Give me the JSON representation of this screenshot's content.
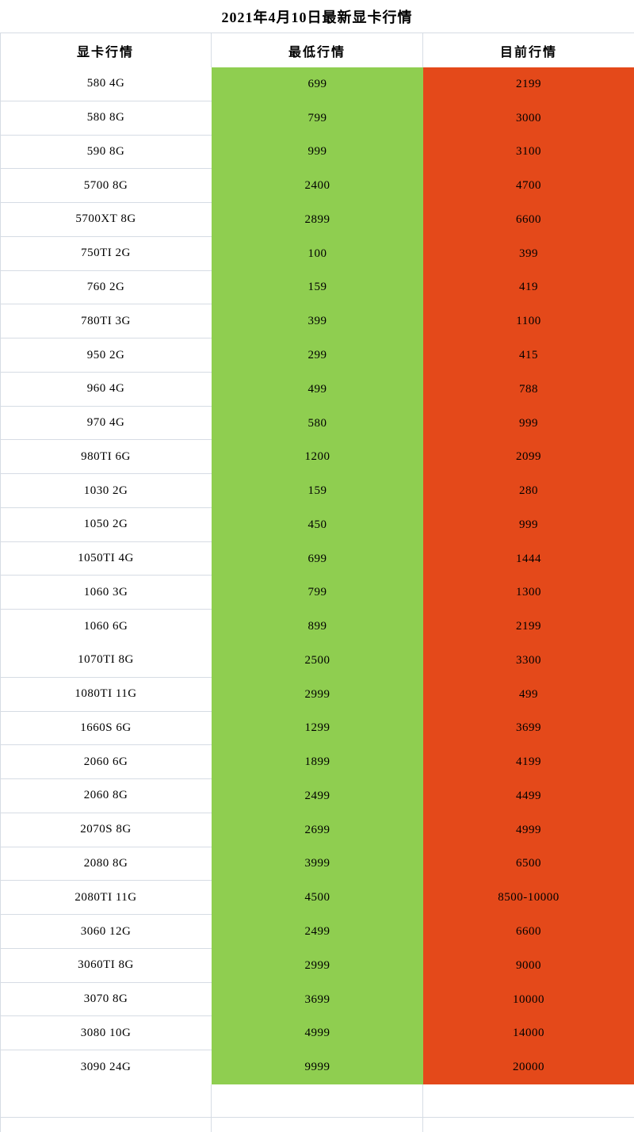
{
  "chart_data": {
    "type": "table",
    "title": "2021年4月10日最新显卡行情",
    "columns": [
      "显卡行情",
      "最低行情",
      "目前行情"
    ],
    "categories": [
      "580 4G",
      "580 8G",
      "590 8G",
      "5700 8G",
      "5700XT 8G",
      "750TI 2G",
      "760 2G",
      "780TI 3G",
      "950 2G",
      "960 4G",
      "970 4G",
      "980TI 6G",
      "1030 2G",
      "1050 2G",
      "1050TI 4G",
      "1060 3G",
      "1060 6G",
      "1070TI 8G",
      "1080TI 11G",
      "1660S 6G",
      "2060 6G",
      "2060 8G",
      "2070S 8G",
      "2080 8G",
      "2080TI 11G",
      "3060 12G",
      "3060TI 8G",
      "3070 8G",
      "3080 10G",
      "3090 24G"
    ],
    "series": [
      {
        "name": "最低行情",
        "values": [
          699,
          799,
          999,
          2400,
          2899,
          100,
          159,
          399,
          299,
          499,
          580,
          1200,
          159,
          450,
          699,
          799,
          899,
          2500,
          2999,
          1299,
          1899,
          2499,
          2699,
          3999,
          4500,
          2499,
          2999,
          3699,
          4999,
          9999
        ]
      },
      {
        "name": "目前行情",
        "values": [
          2199,
          3000,
          3100,
          4700,
          6600,
          399,
          419,
          1100,
          415,
          788,
          999,
          2099,
          280,
          999,
          1444,
          1300,
          2199,
          3300,
          499,
          3699,
          4199,
          4499,
          4999,
          6500,
          "8500-10000",
          6600,
          9000,
          10000,
          14000,
          20000
        ]
      }
    ]
  },
  "colors": {
    "lowest_column_bg": "#8FCE50",
    "current_column_bg": "#E4491A",
    "grid_border": "#D6DCE4",
    "text": "#000000"
  }
}
